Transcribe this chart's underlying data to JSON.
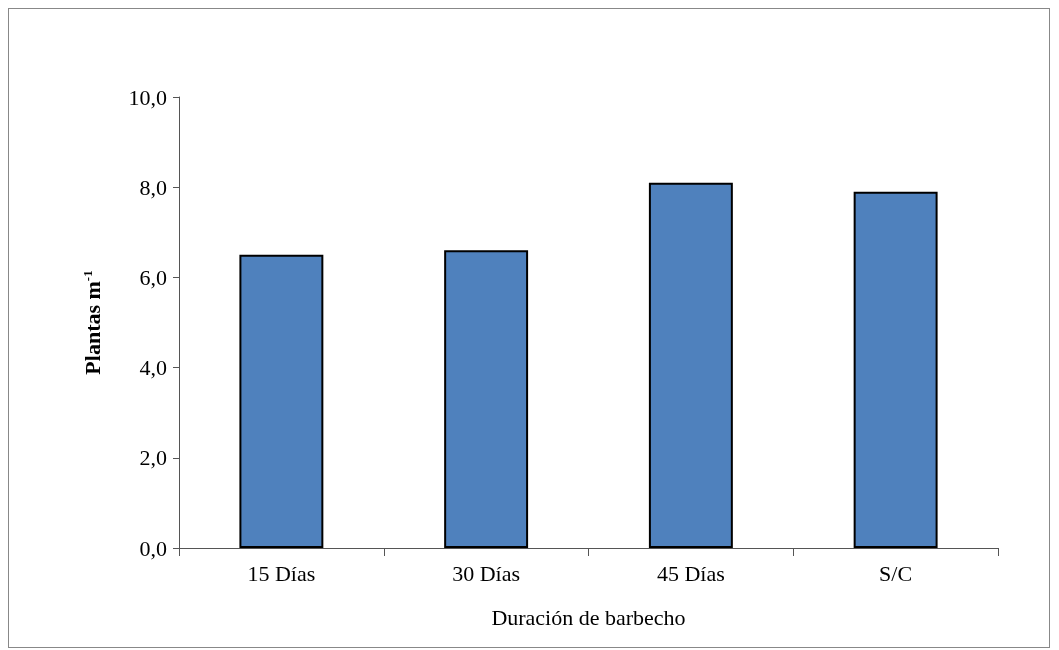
{
  "chart_data": {
    "type": "bar",
    "xlabel": "Duración de barbecho",
    "ylabel": "Plantas m$^{-1}$",
    "categories": [
      "15 Días",
      "30 Días",
      "45 Días",
      "S/C"
    ],
    "values": [
      6.5,
      6.6,
      8.1,
      7.9
    ],
    "color": "#4f81bd",
    "ylim": [
      0,
      10
    ],
    "yticks": [
      {
        "value": 0,
        "label": "0,0"
      },
      {
        "value": 2,
        "label": "2,0"
      },
      {
        "value": 4,
        "label": "4,0"
      },
      {
        "value": 6,
        "label": "6,0"
      },
      {
        "value": 8,
        "label": "8,0"
      },
      {
        "value": 10,
        "label": "10,0"
      }
    ],
    "grid": false
  }
}
